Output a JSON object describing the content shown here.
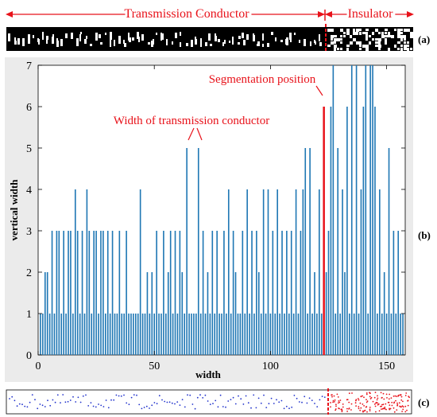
{
  "strip_top": {
    "conductor_label": "Transmission Conductor",
    "insulator_label": "Insulator",
    "panel_label": "(a)"
  },
  "panel_b_label": "(b)",
  "panel_c_label": "(c)",
  "colors": {
    "annotation": "#e8121a",
    "bar": "#1f77b4",
    "axes_bg": "#ebebeb",
    "strip_bg": "#000000",
    "point_conductor": "#2233cc",
    "point_insulator": "#e8121a"
  },
  "chart_data": {
    "type": "bar",
    "title": "",
    "xlabel": "width",
    "ylabel": "vertical width",
    "xlim": [
      0,
      158
    ],
    "ylim": [
      0,
      7
    ],
    "xticks": [
      0,
      50,
      100,
      150
    ],
    "yticks": [
      0,
      1,
      2,
      3,
      4,
      5,
      6,
      7
    ],
    "grid": false,
    "x": [
      1,
      2,
      3,
      4,
      5,
      6,
      7,
      8,
      9,
      10,
      11,
      12,
      13,
      14,
      15,
      16,
      17,
      18,
      19,
      20,
      21,
      22,
      23,
      24,
      25,
      26,
      27,
      28,
      29,
      30,
      31,
      32,
      33,
      34,
      35,
      36,
      37,
      38,
      39,
      40,
      41,
      42,
      43,
      44,
      45,
      46,
      47,
      48,
      49,
      50,
      51,
      52,
      53,
      54,
      55,
      56,
      57,
      58,
      59,
      60,
      61,
      62,
      63,
      64,
      65,
      66,
      67,
      68,
      69,
      70,
      71,
      72,
      73,
      74,
      75,
      76,
      77,
      78,
      79,
      80,
      81,
      82,
      83,
      84,
      85,
      86,
      87,
      88,
      89,
      90,
      91,
      92,
      93,
      94,
      95,
      96,
      97,
      98,
      99,
      100,
      101,
      102,
      103,
      104,
      105,
      106,
      107,
      108,
      109,
      110,
      111,
      112,
      113,
      114,
      115,
      116,
      117,
      118,
      119,
      120,
      121,
      122,
      123,
      124,
      125,
      126,
      127,
      128,
      129,
      130,
      131,
      132,
      133,
      134,
      135,
      136,
      137,
      138,
      139,
      140,
      141,
      142,
      143,
      144,
      145,
      146,
      147,
      148,
      149,
      150,
      151,
      152,
      153,
      154,
      155,
      156,
      157
    ],
    "values": [
      1,
      1,
      2,
      2,
      1,
      3,
      1,
      3,
      3,
      1,
      3,
      1,
      3,
      3,
      1,
      4,
      3,
      1,
      3,
      1,
      4,
      3,
      1,
      3,
      3,
      1,
      3,
      3,
      1,
      3,
      1,
      3,
      1,
      1,
      3,
      1,
      1,
      3,
      1,
      1,
      1,
      1,
      1,
      4,
      1,
      1,
      2,
      1,
      2,
      1,
      3,
      1,
      1,
      3,
      1,
      2,
      3,
      1,
      3,
      1,
      3,
      2,
      1,
      5,
      1,
      1,
      1,
      1,
      5,
      1,
      3,
      1,
      2,
      1,
      3,
      1,
      3,
      1,
      1,
      3,
      1,
      4,
      1,
      3,
      2,
      1,
      1,
      3,
      1,
      4,
      1,
      3,
      1,
      3,
      2,
      1,
      4,
      1,
      4,
      1,
      3,
      1,
      4,
      1,
      3,
      1,
      3,
      1,
      3,
      1,
      4,
      1,
      3,
      4,
      5,
      1,
      5,
      1,
      2,
      1,
      4,
      1,
      3,
      2,
      3,
      6,
      7,
      1,
      5,
      1,
      4,
      2,
      6,
      1,
      7,
      1,
      7,
      1,
      4,
      6,
      7,
      1,
      7,
      7,
      6,
      1,
      4,
      1,
      2,
      1,
      5,
      1,
      3,
      1,
      3,
      1,
      1
    ],
    "annotations": [
      {
        "text": "Segmentation position",
        "x": 123,
        "y": 6
      },
      {
        "text": "Width of transmission conductor",
        "x": [
          64,
          69
        ],
        "y": 5
      }
    ],
    "segmentation_x": 123
  }
}
